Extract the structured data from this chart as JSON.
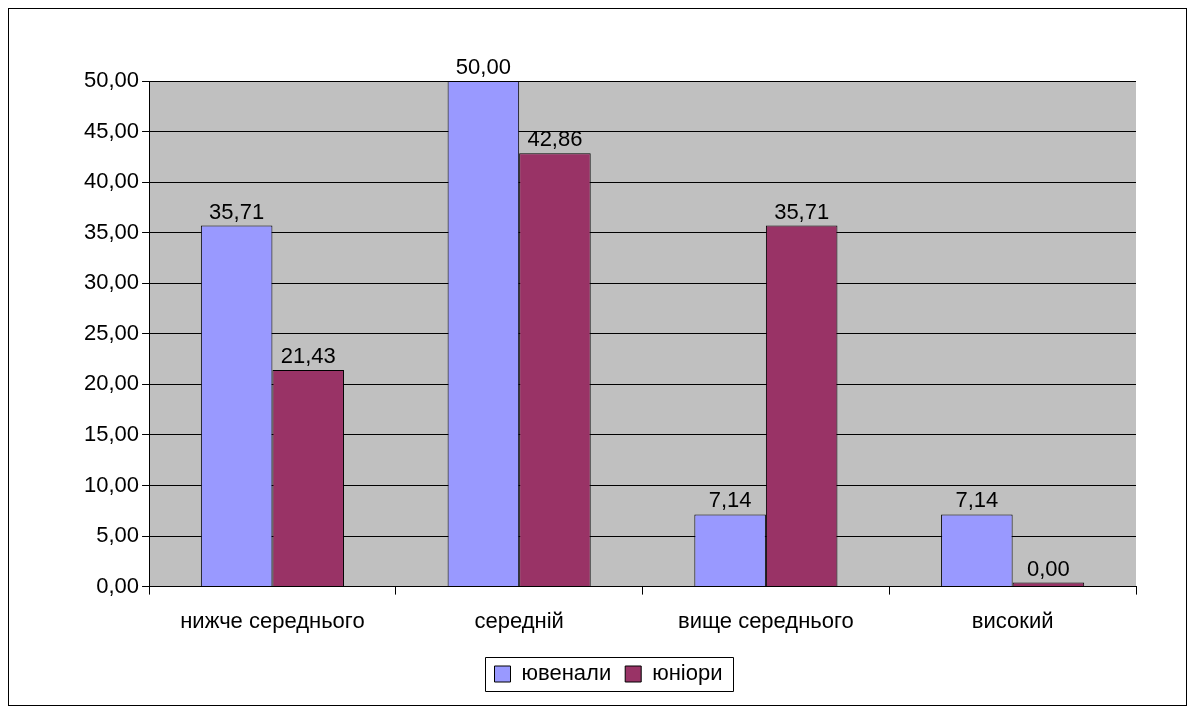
{
  "chart_data": {
    "type": "bar",
    "categories": [
      "нижче середнього",
      "середній",
      "вище середнього",
      "високий"
    ],
    "series": [
      {
        "name": "ювенали",
        "color": "#9999ff",
        "values": [
          35.71,
          50,
          7.14,
          7.14
        ],
        "value_labels": [
          "35,71",
          "50,00",
          "7,14",
          "7,14"
        ]
      },
      {
        "name": "юніори",
        "color": "#993366",
        "values": [
          21.43,
          42.86,
          35.71,
          0
        ],
        "value_labels": [
          "21,43",
          "42,86",
          "35,71",
          "0,00"
        ]
      }
    ],
    "ylim": [
      0,
      50
    ],
    "yticks": [
      {
        "value": 0,
        "label": "0,00"
      },
      {
        "value": 5,
        "label": "5,00"
      },
      {
        "value": 10,
        "label": "10,00"
      },
      {
        "value": 15,
        "label": "15,00"
      },
      {
        "value": 20,
        "label": "20,00"
      },
      {
        "value": 25,
        "label": "25,00"
      },
      {
        "value": 30,
        "label": "30,00"
      },
      {
        "value": 35,
        "label": "35,00"
      },
      {
        "value": 40,
        "label": "40,00"
      },
      {
        "value": 45,
        "label": "45,00"
      },
      {
        "value": 50,
        "label": "50,00"
      }
    ],
    "grid": "y",
    "legend": "bottom"
  }
}
